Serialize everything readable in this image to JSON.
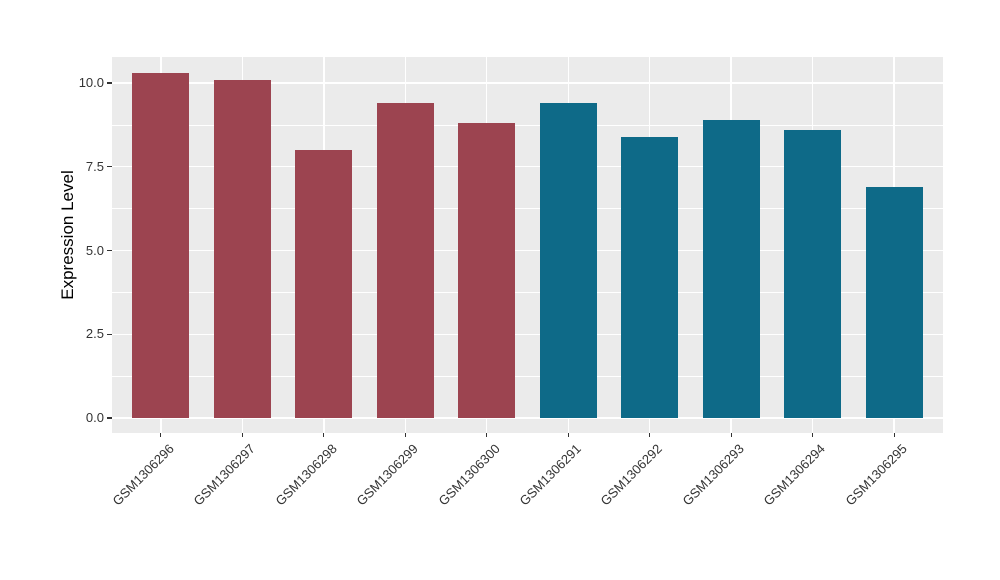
{
  "figure": {
    "background_color": "#ffffff",
    "panel_background_color": "#ebebeb",
    "gridline_color": "#ffffff",
    "axis_text_color": "#333333",
    "axis_title_color": "#000000"
  },
  "chart_data": {
    "type": "bar",
    "title": "",
    "xlabel": "",
    "ylabel": "Expression Level",
    "categories": [
      "GSM1306296",
      "GSM1306297",
      "GSM1306298",
      "GSM1306299",
      "GSM1306300",
      "GSM1306291",
      "GSM1306292",
      "GSM1306293",
      "GSM1306294",
      "GSM1306295"
    ],
    "values": [
      10.3,
      10.1,
      8.0,
      9.4,
      8.8,
      9.4,
      8.4,
      8.9,
      8.6,
      6.9
    ],
    "bar_colors": [
      "#9c4450",
      "#9c4450",
      "#9c4450",
      "#9c4450",
      "#9c4450",
      "#0e6a88",
      "#0e6a88",
      "#0e6a88",
      "#0e6a88",
      "#0e6a88"
    ],
    "group_colors": {
      "left_group": "#9c4450",
      "right_group": "#0e6a88"
    },
    "y_tick_labels": [
      "0.0",
      "2.5",
      "5.0",
      "7.5",
      "10.0"
    ],
    "y_major_ticks": [
      0,
      2.5,
      5,
      7.5,
      10
    ],
    "y_minor_ticks": [
      1.25,
      3.75,
      6.25,
      8.75
    ],
    "ylim": [
      -0.45,
      10.78
    ],
    "x_tick_angle_degrees": 45,
    "grid": "on",
    "legend": "none"
  }
}
